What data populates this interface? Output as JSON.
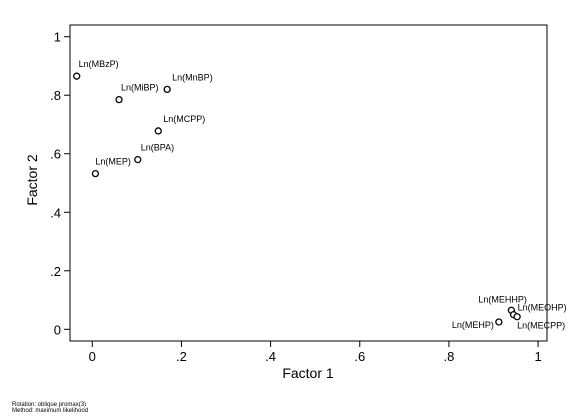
{
  "chart_data": {
    "type": "scatter",
    "xlabel": "Factor 1",
    "ylabel": "Factor 2",
    "xlim": [
      -0.05,
      1.02
    ],
    "ylim": [
      -0.04,
      1.04
    ],
    "x_ticks": [
      0,
      0.2,
      0.4,
      0.6,
      0.8,
      1
    ],
    "x_tick_labels": [
      "0",
      ".2",
      ".4",
      ".6",
      ".8",
      "1"
    ],
    "y_ticks": [
      0,
      0.2,
      0.4,
      0.6,
      0.8,
      1
    ],
    "y_tick_labels": [
      "0",
      ".2",
      ".4",
      ".6",
      ".8",
      "1"
    ],
    "grid": false,
    "legend": "none",
    "marker": "hollow-circle",
    "points": [
      {
        "label": "Ln(MBzP)",
        "x": -0.035,
        "y": 0.865
      },
      {
        "label": "Ln(MiBP)",
        "x": 0.06,
        "y": 0.785
      },
      {
        "label": "Ln(MnBP)",
        "x": 0.168,
        "y": 0.82
      },
      {
        "label": "Ln(MCPP)",
        "x": 0.148,
        "y": 0.678
      },
      {
        "label": "Ln(BPA)",
        "x": 0.102,
        "y": 0.58
      },
      {
        "label": "Ln(MEP)",
        "x": 0.007,
        "y": 0.532
      },
      {
        "label": "Ln(MEHHP)",
        "x": 0.94,
        "y": 0.065
      },
      {
        "label": "Ln(MEOHP)",
        "x": 0.945,
        "y": 0.05
      },
      {
        "label": "Ln(MECPP)",
        "x": 0.953,
        "y": 0.043
      },
      {
        "label": "Ln(MEHP)",
        "x": 0.912,
        "y": 0.025
      }
    ]
  },
  "footnote": {
    "rotation": "Rotation: oblique promax(3)",
    "method": "Method: maximum likelihood"
  }
}
